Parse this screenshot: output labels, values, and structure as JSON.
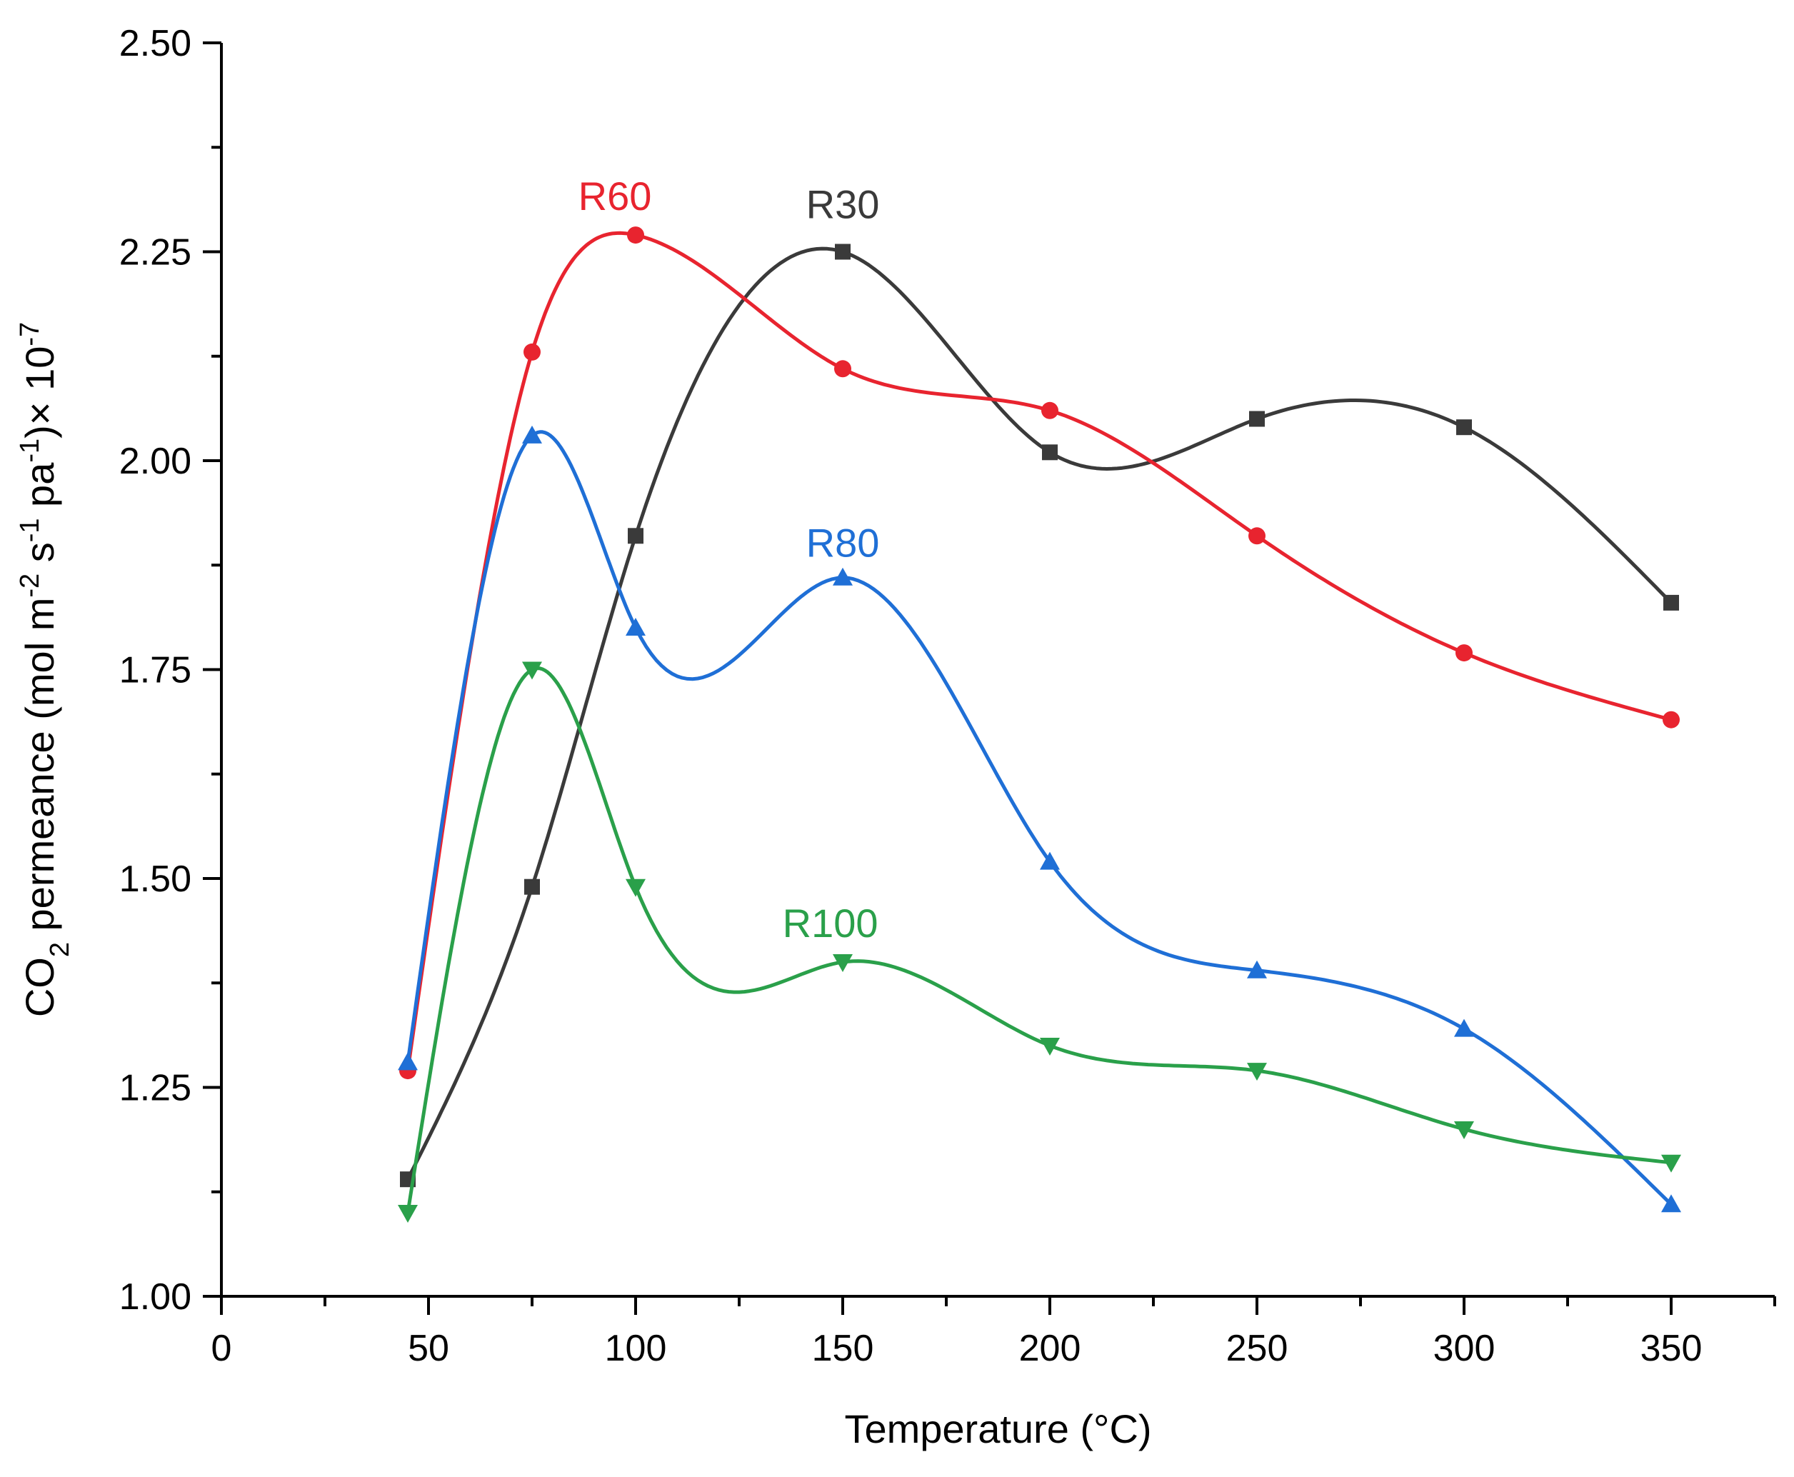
{
  "chart_data": {
    "type": "line",
    "xlabel": "Temperature (°C)",
    "ylabel": {
      "parts": [
        {
          "t": "CO",
          "s": "normal"
        },
        {
          "t": "2",
          "s": "sub"
        },
        {
          "t": " permeance (mol m",
          "s": "normal"
        },
        {
          "t": "-2",
          "s": "sup"
        },
        {
          "t": " s",
          "s": "normal"
        },
        {
          "t": "-1",
          "s": "sup"
        },
        {
          "t": " pa",
          "s": "normal"
        },
        {
          "t": "-1",
          "s": "sup"
        },
        {
          "t": ")× 10",
          "s": "normal"
        },
        {
          "t": "-7",
          "s": "sup"
        }
      ]
    },
    "xlim": [
      0,
      375
    ],
    "ylim": [
      1.0,
      2.5
    ],
    "xticks": [
      0,
      50,
      100,
      150,
      200,
      250,
      300,
      350
    ],
    "xtick_labels": [
      "0",
      "50",
      "100",
      "150",
      "200",
      "250",
      "300",
      "350"
    ],
    "yticks": [
      1.0,
      1.25,
      1.5,
      1.75,
      2.0,
      2.25,
      2.5
    ],
    "ytick_labels": [
      "1.00",
      "1.25",
      "1.50",
      "1.75",
      "2.00",
      "2.25",
      "2.50"
    ],
    "x_minor_step": 25,
    "y_minor_step": 0.125,
    "grid": false,
    "legend": "none",
    "x": [
      45,
      75,
      100,
      150,
      200,
      250,
      300,
      350
    ],
    "series": [
      {
        "name": "R30",
        "color": "#3a3a3a",
        "marker": "square",
        "values": [
          1.14,
          1.49,
          1.91,
          2.25,
          2.01,
          2.05,
          2.04,
          1.83
        ],
        "label_at": [
          150,
          2.29
        ]
      },
      {
        "name": "R60",
        "color": "#e8242f",
        "marker": "circle",
        "values": [
          1.27,
          2.13,
          2.27,
          2.11,
          2.06,
          1.91,
          1.77,
          1.69
        ],
        "label_at": [
          95,
          2.3
        ]
      },
      {
        "name": "R80",
        "color": "#1f6fd6",
        "marker": "triangle-up",
        "values": [
          1.28,
          2.03,
          1.8,
          1.86,
          1.52,
          1.39,
          1.32,
          1.11
        ],
        "label_at": [
          150,
          1.885
        ]
      },
      {
        "name": "R100",
        "color": "#2aa04a",
        "marker": "triangle-down",
        "values": [
          1.1,
          1.75,
          1.49,
          1.4,
          1.3,
          1.27,
          1.2,
          1.16
        ],
        "label_at": [
          147,
          1.43
        ]
      }
    ]
  }
}
